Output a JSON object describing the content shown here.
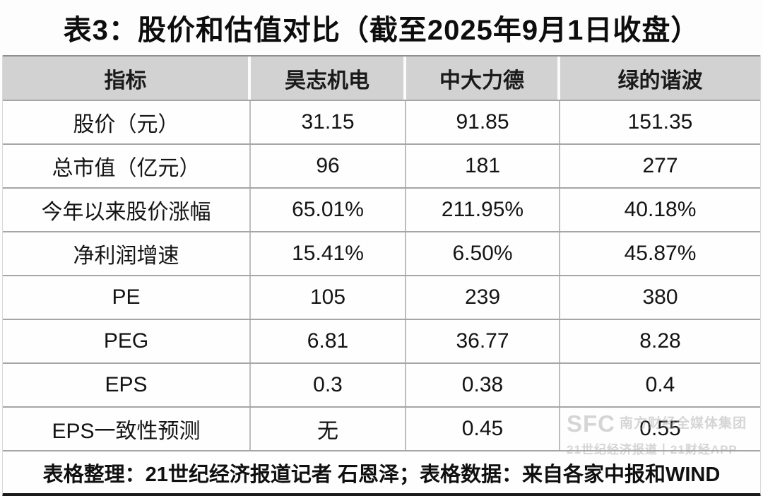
{
  "title": "表3：股价和估值对比（截至2025年9月1日收盘）",
  "table": {
    "headers": [
      "指标",
      "昊志机电",
      "中大力德",
      "绿的谐波"
    ],
    "rows": [
      {
        "label": "股价（元）",
        "values": [
          "31.15",
          "91.85",
          "151.35"
        ]
      },
      {
        "label": "总市值（亿元）",
        "values": [
          "96",
          "181",
          "277"
        ]
      },
      {
        "label": "今年以来股价涨幅",
        "values": [
          "65.01%",
          "211.95%",
          "40.18%"
        ]
      },
      {
        "label": "净利润增速",
        "values": [
          "15.41%",
          "6.50%",
          "45.87%"
        ]
      },
      {
        "label": "PE",
        "values": [
          "105",
          "239",
          "380"
        ]
      },
      {
        "label": "PEG",
        "values": [
          "6.81",
          "36.77",
          "8.28"
        ]
      },
      {
        "label": "EPS",
        "values": [
          "0.3",
          "0.38",
          "0.4"
        ]
      },
      {
        "label": "EPS一致性预测",
        "values": [
          "无",
          "0.45",
          "0.55"
        ]
      }
    ]
  },
  "footer": {
    "note": "表格整理：21世纪经济报道记者 石恩泽；表格数据：来自各家中报和WIND"
  },
  "watermark": {
    "logo": "SFC",
    "line1": "南方财经全媒体集团",
    "line2": "21世纪经济报道丨21财经APP"
  },
  "colors": {
    "header_bg": "#d2d2d2",
    "row_line": "#a6a6a6",
    "col_line": "#bdbdbd",
    "bottom_bar": "#1a1a1a",
    "watermark_gray": "#9f9f9f"
  }
}
